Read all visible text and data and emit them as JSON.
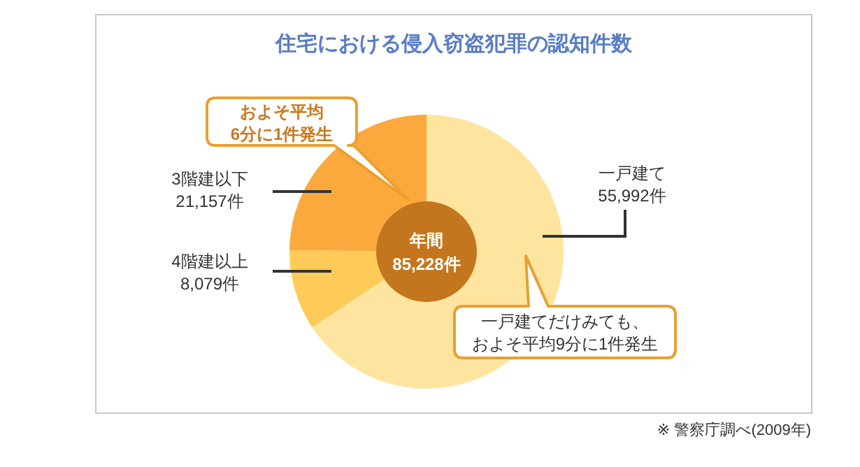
{
  "chart_data": {
    "type": "donut",
    "title": "住宅における侵入窃盗犯罪の認知件数",
    "categories": [
      "一戸建て",
      "4階建以上",
      "3階建以下"
    ],
    "values": [
      55992,
      8079,
      21157
    ],
    "value_labels": [
      "55,992件",
      "8,079件",
      "21,157件"
    ],
    "colors": [
      "#fee59f",
      "#fecb58",
      "#fba93d"
    ],
    "annotations": [
      "およそ平均6分に1件発生",
      "年間85,228件",
      "一戸建てだけみても、およそ平均9分に1件発生",
      "※ 警察庁調べ(2009年)"
    ]
  }
}
